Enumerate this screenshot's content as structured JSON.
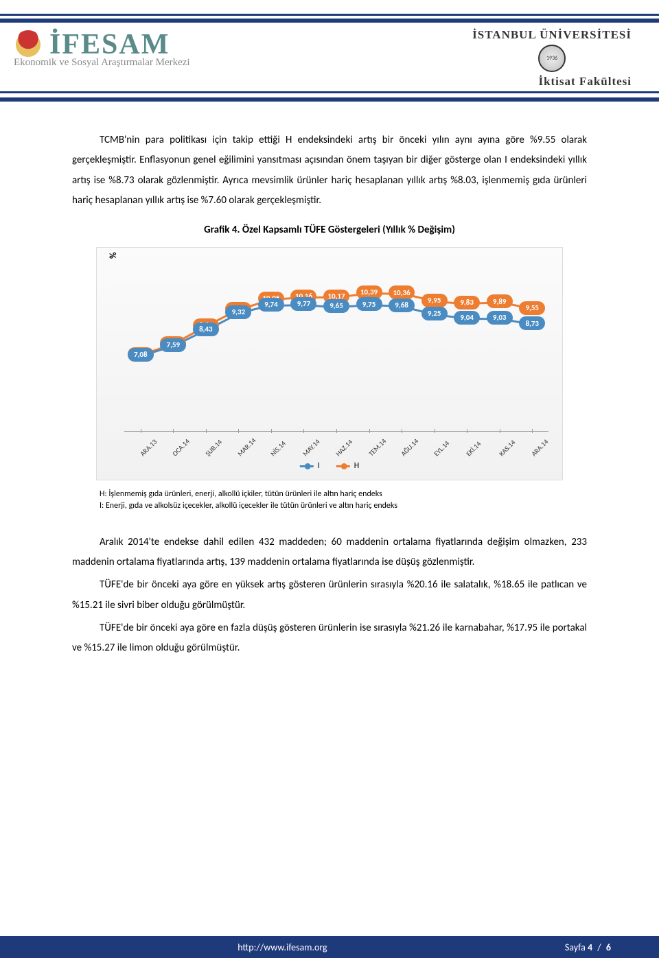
{
  "header": {
    "logo_text": "İFESAM",
    "logo_subtitle": "Ekonomik ve Sosyal Araştırmalar Merkezi",
    "university": "İSTANBUL ÜNİVERSİTESİ",
    "faculty": "İktisat  Fakültesi",
    "seal_year": "1936"
  },
  "body": {
    "p1": "TCMB'nin para politikası için takip ettiği H endeksindeki artış bir önceki yılın aynı ayına göre %9.55 olarak gerçekleşmiştir. Enflasyonun genel eğilimini yansıtması açısından önem taşıyan bir diğer gösterge olan I endeksindeki yıllık artış ise %8.73 olarak gözlenmiştir. Ayrıca mevsimlik ürünler hariç hesaplanan yıllık artış %8.03, işlenmemiş gıda ürünleri hariç hesaplanan yıllık artış ise %7.60 olarak gerçekleşmiştir.",
    "chart_title": "Grafik 4. Özel Kapsamlı TÜFE Göstergeleri (Yıllık % Değişim)",
    "note_h": "H: İşlenmemiş gıda ürünleri, enerji, alkollü içkiler, tütün ürünleri ile altın hariç endeks",
    "note_i": "I: Enerji, gıda ve alkolsüz içecekler, alkollü içecekler ile tütün ürünleri ve altın hariç endeks",
    "p2": "Aralık 2014'te endekse dahil edilen 432 maddeden; 60 maddenin ortalama fiyatlarında değişim olmazken, 233 maddenin ortalama fiyatlarında artış, 139 maddenin ortalama fiyatlarında ise düşüş gözlenmiştir.",
    "p3": "TÜFE'de bir önceki aya göre en yüksek artış gösteren ürünlerin sırasıyla %20.16 ile salatalık, %18.65 ile patlıcan ve %15.21 ile sivri biber olduğu görülmüştür.",
    "p4": "TÜFE'de bir önceki aya göre en fazla düşüş gösteren ürünlerin ise sırasıyla %21.26 ile karnabahar, %17.95 ile portakal ve %15.27 ile limon olduğu görülmüştür."
  },
  "chart": {
    "y_axis_label": "%",
    "series_i_color": "#4a8bc2",
    "series_h_color": "#ed7d31",
    "categories": [
      "ARA.13",
      "OCA.14",
      "ŞUB.14",
      "MAR.14",
      "NİS.14",
      "MAY.14",
      "HAZ.14",
      "TEM.14",
      "AĞU.14",
      "EYL.14",
      "EKİ.14",
      "KAS.14",
      "ARA.14"
    ],
    "series_h": [
      "7,11",
      "7,7",
      "8,63",
      "9,52",
      "10,05",
      "10,16",
      "10,17",
      "10,39",
      "10,36",
      "9,95",
      "9,83",
      "9,89",
      "9,55"
    ],
    "series_i": [
      "7,08",
      "7,59",
      "8,43",
      "9,32",
      "9,74",
      "9,77",
      "9,65",
      "9,75",
      "9,68",
      "9,25",
      "9,04",
      "9,03",
      "8,73"
    ],
    "series_h_num": [
      7.11,
      7.7,
      8.63,
      9.52,
      10.05,
      10.16,
      10.17,
      10.39,
      10.36,
      9.95,
      9.83,
      9.89,
      9.55
    ],
    "series_i_num": [
      7.08,
      7.59,
      8.43,
      9.32,
      9.74,
      9.77,
      9.65,
      9.75,
      9.68,
      9.25,
      9.04,
      9.03,
      8.73
    ],
    "y_min": 3.0,
    "y_max": 12.0,
    "legend_i": "I",
    "legend_h": "H",
    "background_gradient_top": "#fbfbfb",
    "background_gradient_bottom": "#f1f1f1",
    "axis_color": "#999999",
    "text_color": "#ffffff",
    "point_fontsize": 11
  },
  "footer": {
    "url": "http://www.ifesam.org",
    "page_label": "Sayfa",
    "page_current": "4",
    "page_sep": "/",
    "page_total": "6",
    "bg_color": "#1f3a7a"
  }
}
